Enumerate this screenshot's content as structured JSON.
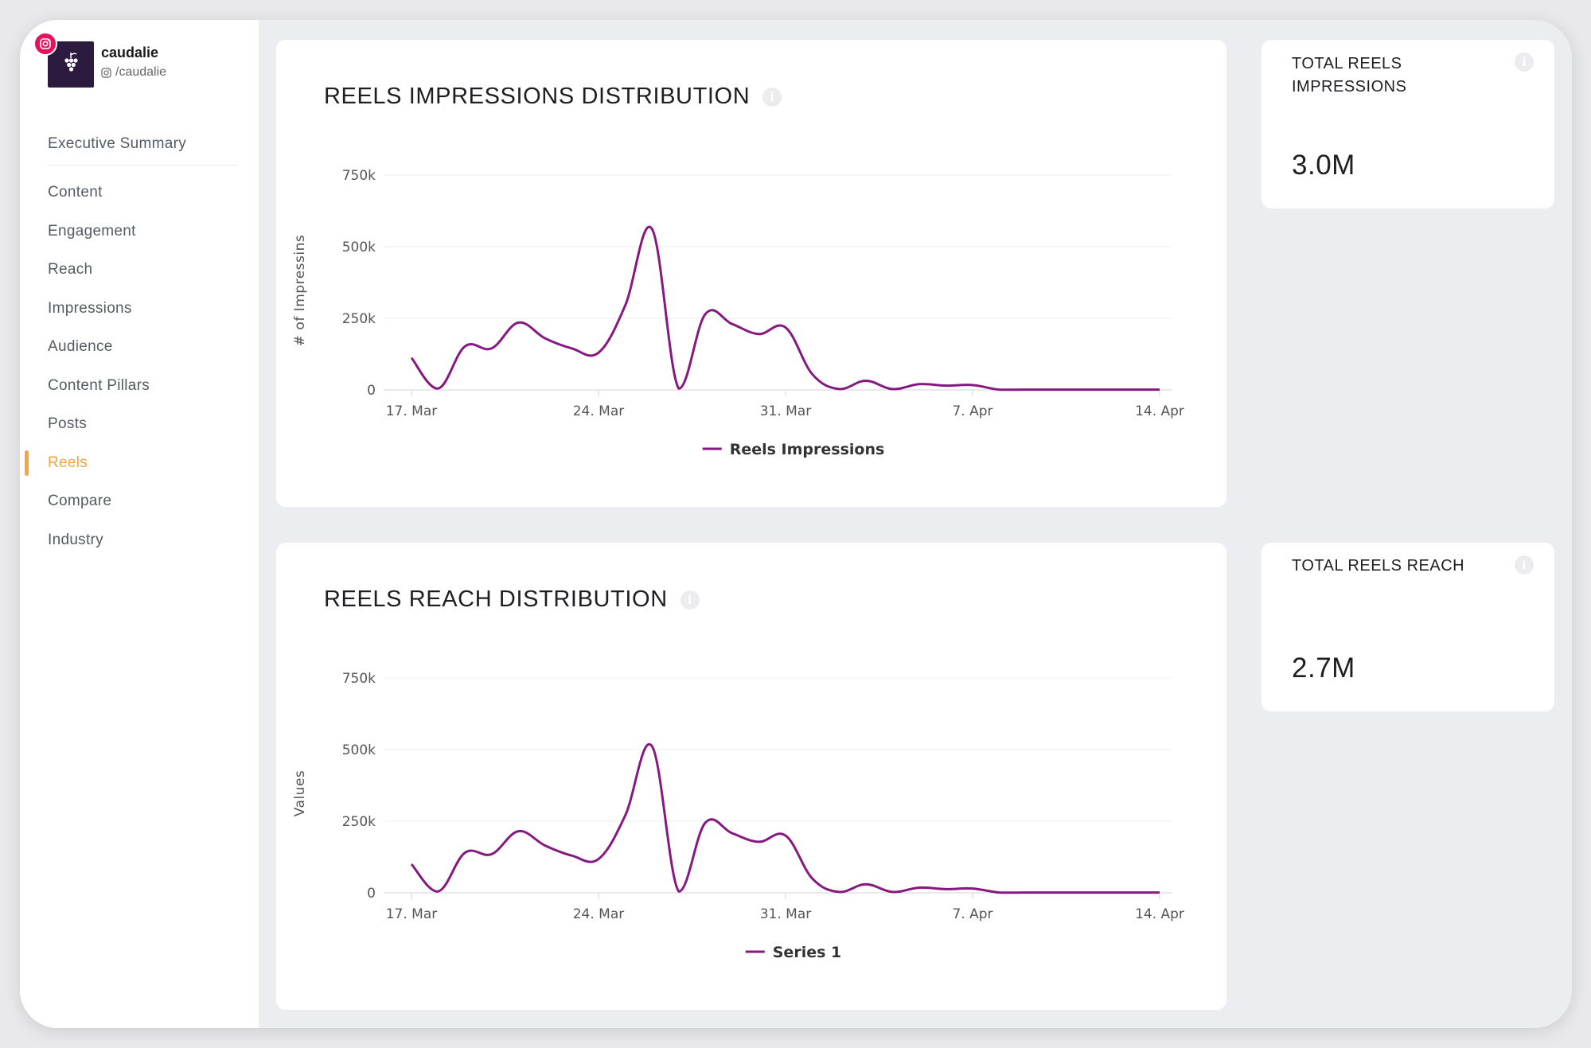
{
  "brand": {
    "name": "caudalie",
    "handle": "/caudalie"
  },
  "nav": {
    "items": [
      {
        "label": "Executive Summary"
      },
      {
        "label": "Content"
      },
      {
        "label": "Engagement"
      },
      {
        "label": "Reach"
      },
      {
        "label": "Impressions"
      },
      {
        "label": "Audience"
      },
      {
        "label": "Content Pillars"
      },
      {
        "label": "Posts"
      },
      {
        "label": "Reels",
        "active": true
      },
      {
        "label": "Compare"
      },
      {
        "label": "Industry"
      }
    ]
  },
  "impressions_card": {
    "title": "REELS IMPRESSIONS DISTRIBUTION"
  },
  "reach_card": {
    "title": "REELS REACH DISTRIBUTION"
  },
  "stats": {
    "total_impressions": {
      "label": "TOTAL REELS IMPRESSIONS",
      "value": "3.0M"
    },
    "total_reach": {
      "label": "TOTAL REELS REACH",
      "value": "2.7M"
    }
  },
  "colors": {
    "accent": "#f3a540",
    "series": "#85197f",
    "instagram": "#e4135f"
  },
  "chart_data": [
    {
      "type": "line",
      "title": "REELS IMPRESSIONS DISTRIBUTION",
      "xlabel": "",
      "ylabel": "# of Impressins",
      "ylim": [
        0,
        750000
      ],
      "yticks": [
        "0",
        "250k",
        "500k",
        "750k"
      ],
      "yticks_values": [
        0,
        250000,
        500000,
        750000
      ],
      "xticks": [
        "17. Mar",
        "24. Mar",
        "31. Mar",
        "7. Apr",
        "14. Apr"
      ],
      "x": [
        "17. Mar",
        "18. Mar",
        "19. Mar",
        "20. Mar",
        "21. Mar",
        "22. Mar",
        "23. Mar",
        "24. Mar",
        "25. Mar",
        "26. Mar",
        "27. Mar",
        "28. Mar",
        "29. Mar",
        "30. Mar",
        "31. Mar",
        "1. Apr",
        "2. Apr",
        "3. Apr",
        "4. Apr",
        "5. Apr",
        "6. Apr",
        "7. Apr",
        "8. Apr",
        "9. Apr",
        "10. Apr",
        "11. Apr",
        "12. Apr",
        "13. Apr",
        "14. Apr"
      ],
      "legend": "bottom-center",
      "grid": true,
      "series": [
        {
          "name": "Reels Impressions",
          "values": [
            112000,
            5000,
            152000,
            145000,
            235000,
            180000,
            145000,
            130000,
            295000,
            562000,
            5000,
            265000,
            230000,
            195000,
            218000,
            55000,
            3000,
            32000,
            3000,
            20000,
            15000,
            17000,
            1000,
            1000,
            1000,
            1000,
            1000,
            1000,
            1000
          ]
        }
      ]
    },
    {
      "type": "line",
      "title": "REELS REACH DISTRIBUTION",
      "xlabel": "",
      "ylabel": "Values",
      "ylim": [
        0,
        750000
      ],
      "yticks": [
        "0",
        "250k",
        "500k",
        "750k"
      ],
      "yticks_values": [
        0,
        250000,
        500000,
        750000
      ],
      "xticks": [
        "17. Mar",
        "24. Mar",
        "31. Mar",
        "7. Apr",
        "14. Apr"
      ],
      "x": [
        "17. Mar",
        "18. Mar",
        "19. Mar",
        "20. Mar",
        "21. Mar",
        "22. Mar",
        "23. Mar",
        "24. Mar",
        "25. Mar",
        "26. Mar",
        "27. Mar",
        "28. Mar",
        "29. Mar",
        "30. Mar",
        "31. Mar",
        "1. Apr",
        "2. Apr",
        "3. Apr",
        "4. Apr",
        "5. Apr",
        "6. Apr",
        "7. Apr",
        "8. Apr",
        "9. Apr",
        "10. Apr",
        "11. Apr",
        "12. Apr",
        "13. Apr",
        "14. Apr"
      ],
      "legend": "bottom-center",
      "grid": true,
      "series": [
        {
          "name": "Series 1",
          "values": [
            100000,
            5000,
            140000,
            135000,
            215000,
            165000,
            130000,
            118000,
            270000,
            512000,
            5000,
            245000,
            208000,
            178000,
            200000,
            50000,
            3000,
            30000,
            3000,
            18000,
            13000,
            15000,
            1000,
            1000,
            1000,
            1000,
            1000,
            1000,
            1000
          ]
        }
      ]
    }
  ]
}
